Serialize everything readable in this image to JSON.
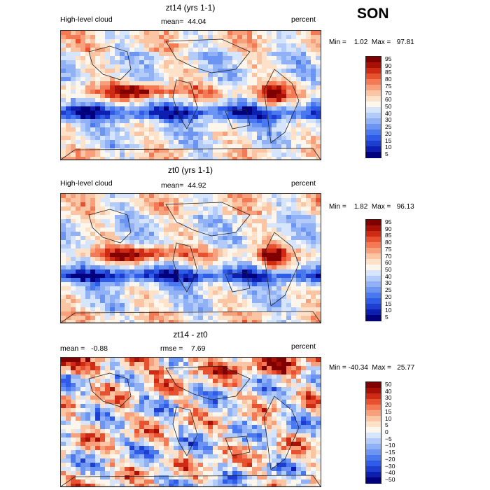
{
  "season": "SON",
  "panels": [
    {
      "title": "zt14 (yrs 1-1)",
      "left_label": "High-level cloud",
      "center_label": "mean=  44.04",
      "right_label": "percent",
      "stats": "Min =    1.02  Max =   97.81",
      "legend": {
        "colors": [
          "#00007f",
          "#0d1fb0",
          "#1e3ed0",
          "#2e5ce8",
          "#4a78ef",
          "#6c95f3",
          "#90b1f6",
          "#b3cbf9",
          "#d6e5fb",
          "#fdf6ec",
          "#fde2c9",
          "#fbc4a2",
          "#f8a07b",
          "#f47a55",
          "#e8512f",
          "#cf2a14",
          "#a81006",
          "#800000"
        ],
        "ticks": [
          "95",
          "90",
          "85",
          "80",
          "75",
          "70",
          "60",
          "50",
          "40",
          "30",
          "25",
          "20",
          "15",
          "10",
          "5"
        ]
      }
    },
    {
      "title": "zt0 (yrs 1-1)",
      "left_label": "High-level cloud",
      "center_label": "mean=  44.92",
      "right_label": "percent",
      "stats": "Min =    1.82  Max =   96.13",
      "legend": {
        "colors": [
          "#00007f",
          "#0d1fb0",
          "#1e3ed0",
          "#2e5ce8",
          "#4a78ef",
          "#6c95f3",
          "#90b1f6",
          "#b3cbf9",
          "#d6e5fb",
          "#fdf6ec",
          "#fde2c9",
          "#fbc4a2",
          "#f8a07b",
          "#f47a55",
          "#e8512f",
          "#cf2a14",
          "#a81006",
          "#800000"
        ],
        "ticks": [
          "95",
          "90",
          "85",
          "80",
          "75",
          "70",
          "60",
          "50",
          "40",
          "30",
          "25",
          "20",
          "15",
          "10",
          "5"
        ]
      }
    },
    {
      "title": "zt14 - zt0",
      "left_label": "mean =   -0.88",
      "center_label": "rmse =    7.69",
      "right_label": "percent",
      "stats": "Min = -40.34  Max =   25.77",
      "legend": {
        "colors": [
          "#00007f",
          "#0d1fb0",
          "#1e3ed0",
          "#2e5ce8",
          "#4a78ef",
          "#6c95f3",
          "#90b1f6",
          "#b3cbf9",
          "#d6e5fb",
          "#fdf6ec",
          "#fde2c9",
          "#fbc4a2",
          "#f8a07b",
          "#f47a55",
          "#e8512f",
          "#cf2a14",
          "#a81006",
          "#800000"
        ],
        "ticks": [
          "50",
          "40",
          "30",
          "20",
          "15",
          "10",
          "5",
          "0",
          "−5",
          "−10",
          "−15",
          "−20",
          "−30",
          "−40",
          "−50"
        ]
      }
    }
  ]
}
